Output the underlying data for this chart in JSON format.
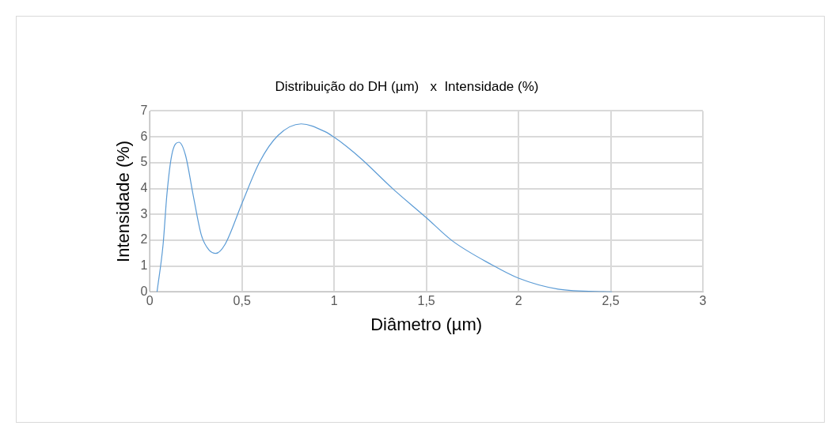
{
  "chart_data": {
    "type": "line",
    "title": "Distribuição do DH (µm)   x  Intensidade (%)",
    "xlabel": "Diâmetro (µm)",
    "ylabel": "Intensidade (%)",
    "x": [
      0.039,
      0.072,
      0.093,
      0.119,
      0.158,
      0.193,
      0.236,
      0.279,
      0.322,
      0.358,
      0.408,
      0.5,
      0.595,
      0.695,
      0.821,
      0.953,
      0.996,
      1.067,
      1.153,
      1.318,
      1.5,
      1.64,
      1.855,
      2.0,
      2.214,
      2.507
    ],
    "series": [
      {
        "color": "#5b9bd5",
        "values": [
          0,
          1.84,
          3.8,
          5.3,
          5.79,
          5.3,
          3.71,
          2.21,
          1.61,
          1.49,
          1.84,
          3.43,
          5.02,
          6.05,
          6.5,
          6.19,
          6.0,
          5.63,
          5.11,
          3.99,
          2.87,
          1.98,
          1.05,
          0.53,
          0.11,
          0
        ]
      }
    ],
    "xlim": [
      0,
      3
    ],
    "xticks": [
      {
        "value": 0,
        "label": "0"
      },
      {
        "value": 0.5,
        "label": "0,5"
      },
      {
        "value": 1,
        "label": "1"
      },
      {
        "value": 1.5,
        "label": "1,5"
      },
      {
        "value": 2,
        "label": "2"
      },
      {
        "value": 2.5,
        "label": "2,5"
      },
      {
        "value": 3,
        "label": "3"
      }
    ],
    "ylim": [
      0,
      7
    ],
    "yticks": [
      0,
      1,
      2,
      3,
      4,
      5,
      6,
      7
    ],
    "grid": true,
    "marker": "none",
    "line_style": "solid"
  }
}
